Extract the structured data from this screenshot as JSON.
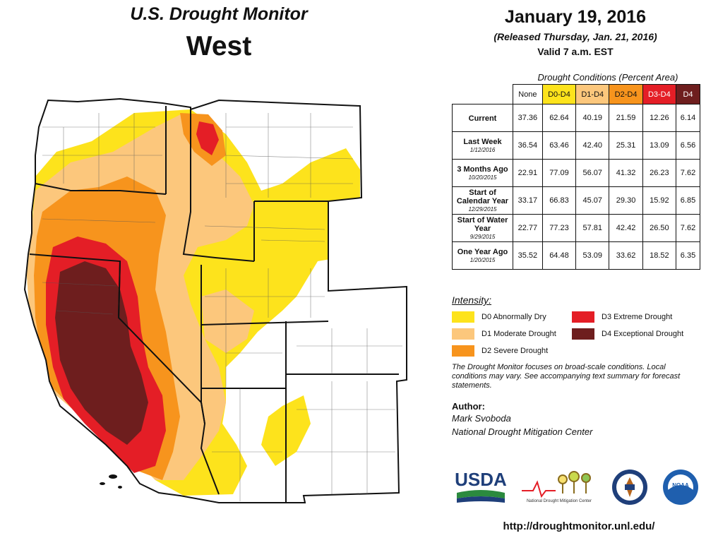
{
  "header": {
    "subtitle": "U.S. Drought Monitor",
    "region": "West",
    "date": "January 19, 2016",
    "released": "(Released Thursday, Jan. 21, 2016)",
    "valid": "Valid  7 a.m. EST"
  },
  "colors": {
    "D0": "#fde31c",
    "D1": "#fcc77c",
    "D2": "#f7941d",
    "D3": "#e41e26",
    "D4": "#6e1e1e",
    "none_cell": "#ffffff"
  },
  "table": {
    "caption": "Drought Conditions (Percent Area)",
    "columns": [
      "None",
      "D0-D4",
      "D1-D4",
      "D2-D4",
      "D3-D4",
      "D4"
    ],
    "rows": [
      {
        "label": "Current",
        "date": "",
        "values": [
          "37.36",
          "62.64",
          "40.19",
          "21.59",
          "12.26",
          "6.14"
        ]
      },
      {
        "label": "Last Week",
        "date": "1/12/2016",
        "values": [
          "36.54",
          "63.46",
          "42.40",
          "25.31",
          "13.09",
          "6.56"
        ]
      },
      {
        "label": "3 Months Ago",
        "date": "10/20/2015",
        "values": [
          "22.91",
          "77.09",
          "56.07",
          "41.32",
          "26.23",
          "7.62"
        ]
      },
      {
        "label": "Start of Calendar Year",
        "date": "12/29/2015",
        "values": [
          "33.17",
          "66.83",
          "45.07",
          "29.30",
          "15.92",
          "6.85"
        ]
      },
      {
        "label": "Start of Water Year",
        "date": "9/29/2015",
        "values": [
          "22.77",
          "77.23",
          "57.81",
          "42.42",
          "26.50",
          "7.62"
        ]
      },
      {
        "label": "One Year Ago",
        "date": "1/20/2015",
        "values": [
          "35.52",
          "64.48",
          "53.09",
          "33.62",
          "18.52",
          "6.35"
        ]
      }
    ]
  },
  "legend": {
    "title": "Intensity:",
    "items": [
      {
        "code": "D0",
        "label": "D0 Abnormally Dry"
      },
      {
        "code": "D1",
        "label": "D1 Moderate Drought"
      },
      {
        "code": "D2",
        "label": "D2 Severe Drought"
      },
      {
        "code": "D3",
        "label": "D3 Extreme Drought"
      },
      {
        "code": "D4",
        "label": "D4 Exceptional Drought"
      }
    ]
  },
  "note": "The Drought Monitor focuses on broad-scale conditions. Local conditions may vary. See accompanying text summary for forecast statements.",
  "author": {
    "label": "Author:",
    "name": "Mark Svoboda",
    "org": "National Drought Mitigation Center"
  },
  "logos": {
    "usda": "USDA",
    "ndmc": "National Drought Mitigation Center",
    "doc_icon": "commerce-seal-icon",
    "noaa": "NOAA"
  },
  "url": "http://droughtmonitor.unl.edu/"
}
